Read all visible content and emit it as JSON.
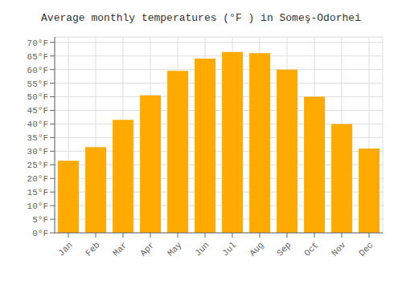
{
  "chart_data": {
    "type": "bar",
    "title": "Average monthly temperatures (°F ) in Someş-Odorhei",
    "categories": [
      "Jan",
      "Feb",
      "Mar",
      "Apr",
      "May",
      "Jun",
      "Jul",
      "Aug",
      "Sep",
      "Oct",
      "Nov",
      "Dec"
    ],
    "values": [
      26.5,
      31.5,
      41.5,
      50.5,
      59.5,
      64.0,
      66.5,
      66.0,
      60.0,
      50.0,
      40.0,
      31.0
    ],
    "color": "#FFAA00",
    "ylim": [
      0,
      72
    ],
    "yticks": [
      {
        "value": 0,
        "label": "0°F"
      },
      {
        "value": 5,
        "label": "5°F"
      },
      {
        "value": 10,
        "label": "10°F"
      },
      {
        "value": 15,
        "label": "15°F"
      },
      {
        "value": 20,
        "label": "20°F"
      },
      {
        "value": 25,
        "label": "25°F"
      },
      {
        "value": 30,
        "label": "30°F"
      },
      {
        "value": 35,
        "label": "35°F"
      },
      {
        "value": 40,
        "label": "40°F"
      },
      {
        "value": 45,
        "label": "45°F"
      },
      {
        "value": 50,
        "label": "50°F"
      },
      {
        "value": 55,
        "label": "55°F"
      },
      {
        "value": 60,
        "label": "60°F"
      },
      {
        "value": 65,
        "label": "65°F"
      },
      {
        "value": 70,
        "label": "70°F"
      }
    ],
    "grid": true
  }
}
